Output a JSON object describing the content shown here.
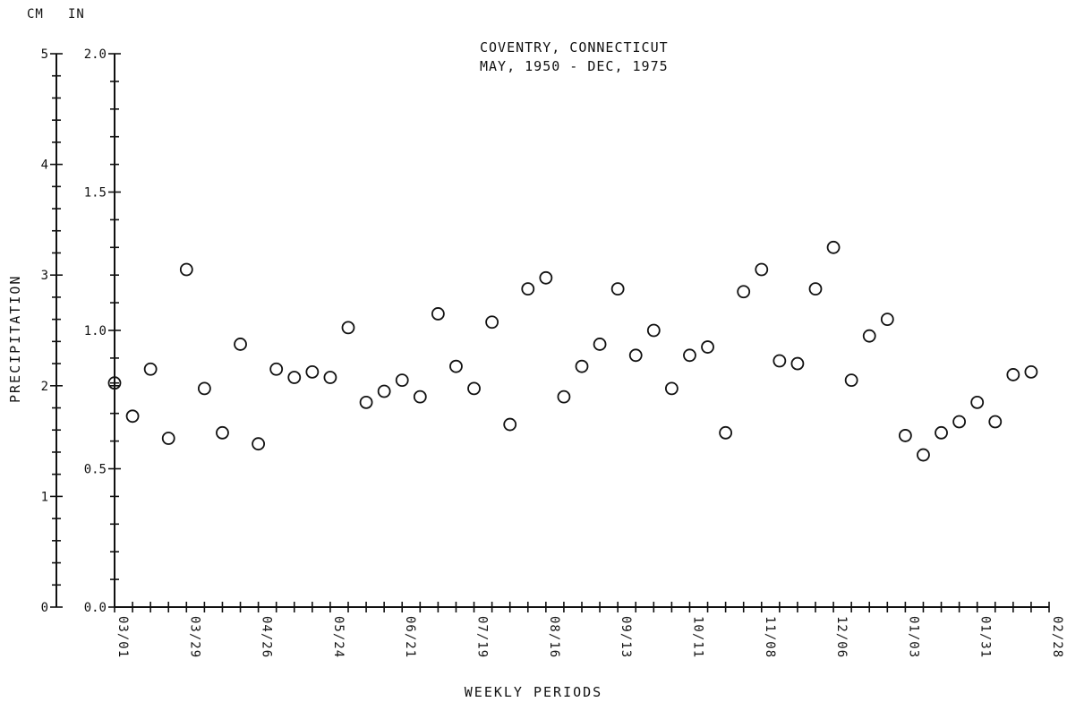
{
  "chart_data": {
    "type": "scatter",
    "title": "COVENTRY, CONNECTICUT",
    "subtitle": "MAY, 1950 - DEC, 1975",
    "xlabel": "WEEKLY PERIODS",
    "ylabel": "PRECIPITATION",
    "y_units_left": "CM",
    "y_units_right": "IN",
    "ylim_in": [
      0.0,
      2.0
    ],
    "ylim_cm": [
      0,
      5
    ],
    "yticks_in": [
      "0.0",
      "0.5",
      "1.0",
      "1.5",
      "2.0"
    ],
    "yticks_cm": [
      "0",
      "1",
      "2",
      "3",
      "4",
      "5"
    ],
    "x_tick_labels": [
      "03/01",
      "03/29",
      "04/26",
      "05/24",
      "06/21",
      "07/19",
      "08/16",
      "09/13",
      "10/11",
      "11/08",
      "12/06",
      "01/03",
      "01/31",
      "02/28"
    ],
    "x_week_index": [
      0,
      1,
      2,
      3,
      4,
      5,
      6,
      7,
      8,
      9,
      10,
      11,
      12,
      13,
      14,
      15,
      16,
      17,
      18,
      19,
      20,
      21,
      22,
      23,
      24,
      25,
      26,
      27,
      28,
      29,
      30,
      31,
      32,
      33,
      34,
      35,
      36,
      37,
      38,
      39,
      40,
      41,
      42,
      43,
      44,
      45,
      46,
      47,
      48,
      49,
      50,
      51
    ],
    "values_in": [
      0.81,
      0.69,
      0.86,
      0.61,
      1.22,
      0.79,
      0.63,
      0.95,
      0.59,
      0.86,
      0.83,
      0.85,
      0.83,
      1.01,
      0.74,
      0.78,
      0.82,
      0.76,
      1.06,
      0.87,
      0.79,
      1.03,
      0.66,
      1.15,
      1.19,
      0.76,
      0.87,
      0.95,
      1.15,
      0.91,
      1.0,
      0.79,
      0.91,
      0.94,
      0.63,
      1.14,
      1.22,
      0.89,
      0.88,
      1.15,
      1.3,
      0.82,
      0.98,
      1.04,
      0.62,
      0.55,
      0.63,
      0.67,
      0.74,
      0.67,
      0.84,
      0.85
    ],
    "grid": false,
    "legend": "none"
  }
}
